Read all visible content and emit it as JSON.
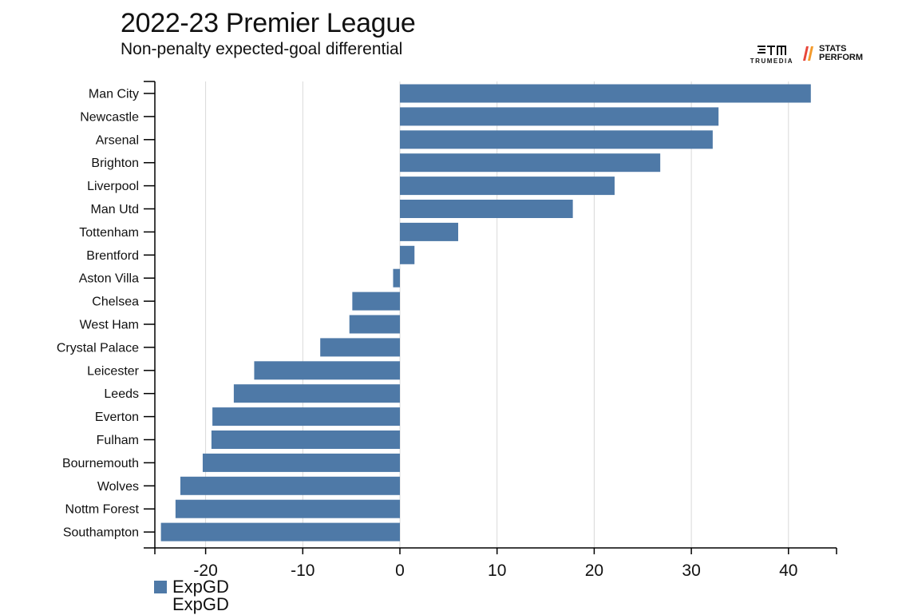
{
  "header": {
    "title": "2022-23 Premier League",
    "subtitle": "Non-penalty expected-goal differential"
  },
  "logos": {
    "trumedia": "TRUMEDIA",
    "stats_perform_line1": "STATS",
    "stats_perform_line2": "PERFORM"
  },
  "legend": {
    "items": [
      "ExpGD",
      "ExpGD"
    ]
  },
  "colors": {
    "bar": "#4e79a7",
    "grid": "#d9d9d9",
    "axis": "#000000"
  },
  "chart_data": {
    "type": "bar",
    "orientation": "horizontal",
    "title": "2022-23 Premier League",
    "subtitle": "Non-penalty expected-goal differential",
    "categories": [
      "Man City",
      "Newcastle",
      "Arsenal",
      "Brighton",
      "Liverpool",
      "Man Utd",
      "Tottenham",
      "Brentford",
      "Aston Villa",
      "Chelsea",
      "West Ham",
      "Crystal Palace",
      "Leicester",
      "Leeds",
      "Everton",
      "Fulham",
      "Bournemouth",
      "Wolves",
      "Nottm Forest",
      "Southampton"
    ],
    "series": [
      {
        "name": "ExpGD",
        "values": [
          42.3,
          32.8,
          32.2,
          26.8,
          22.1,
          17.8,
          6.0,
          1.5,
          -0.7,
          -4.9,
          -5.2,
          -8.2,
          -15.0,
          -17.1,
          -19.3,
          -19.4,
          -20.3,
          -22.6,
          -23.1,
          -24.6
        ]
      }
    ],
    "xlim": [
      -25.5,
      45
    ],
    "xticks": [
      -20,
      -10,
      0,
      10,
      20,
      30,
      40
    ],
    "xtick_labels": [
      "-20",
      "-10",
      "0",
      "10",
      "20",
      "30",
      "40"
    ],
    "grid": true,
    "legend": "bottom-left"
  }
}
